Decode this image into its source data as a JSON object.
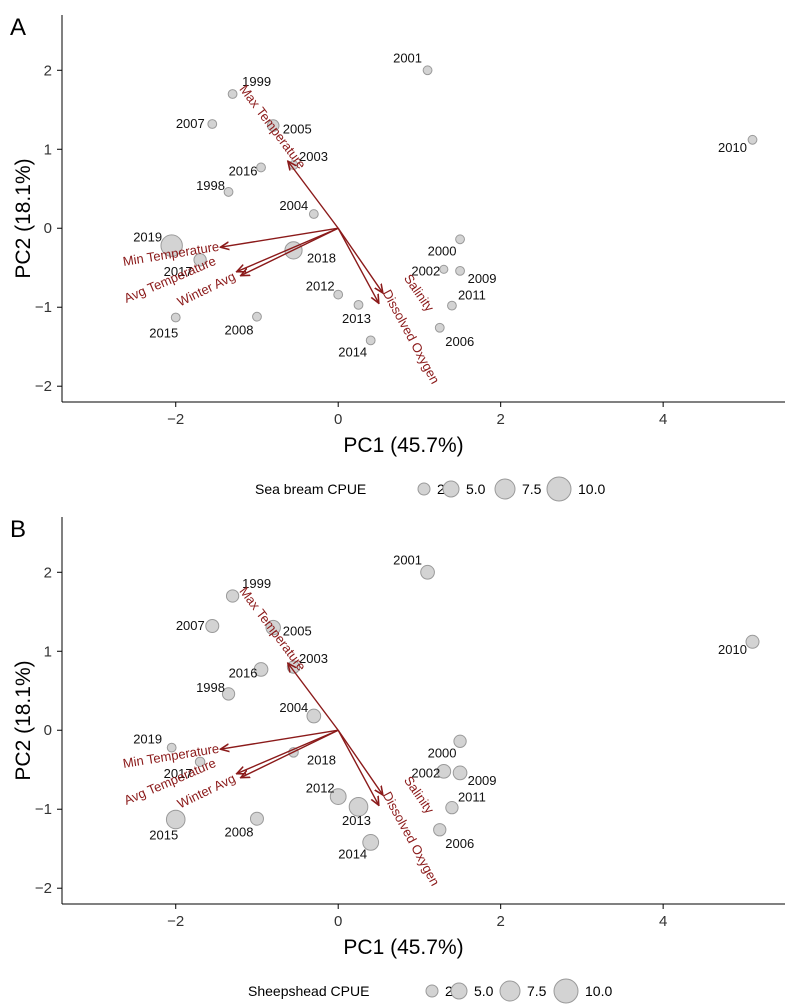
{
  "chart_data": [
    {
      "type": "scatter",
      "panel": "A",
      "xlabel": "PC1 (45.7%)",
      "ylabel": "PC2 (18.1%)",
      "xlim": [
        -3.4,
        5.5
      ],
      "ylim": [
        -2.2,
        2.7
      ],
      "xticks": [
        -2,
        0,
        2,
        4
      ],
      "yticks": [
        -2,
        -1,
        0,
        1,
        2
      ],
      "grid": false,
      "points": [
        {
          "label": "1998",
          "x": -1.35,
          "y": 0.46,
          "size": 2.0
        },
        {
          "label": "1999",
          "x": -1.3,
          "y": 1.7,
          "size": 2.0
        },
        {
          "label": "2000",
          "x": 1.5,
          "y": -0.14,
          "size": 2.0
        },
        {
          "label": "2001",
          "x": 1.1,
          "y": 2.0,
          "size": 2.0
        },
        {
          "label": "2002",
          "x": 1.3,
          "y": -0.52,
          "size": 1.5
        },
        {
          "label": "2003",
          "x": -0.55,
          "y": 0.8,
          "size": 2.0
        },
        {
          "label": "2004",
          "x": -0.3,
          "y": 0.18,
          "size": 2.0
        },
        {
          "label": "2005",
          "x": -0.8,
          "y": 1.3,
          "size": 4.0
        },
        {
          "label": "2006",
          "x": 1.25,
          "y": -1.26,
          "size": 2.0
        },
        {
          "label": "2007",
          "x": -1.55,
          "y": 1.32,
          "size": 2.0
        },
        {
          "label": "2008",
          "x": -1.0,
          "y": -1.12,
          "size": 2.0
        },
        {
          "label": "2009",
          "x": 1.5,
          "y": -0.54,
          "size": 2.0
        },
        {
          "label": "2010",
          "x": 5.1,
          "y": 1.12,
          "size": 2.0
        },
        {
          "label": "2011",
          "x": 1.4,
          "y": -0.98,
          "size": 2.0
        },
        {
          "label": "2012",
          "x": 0.0,
          "y": -0.84,
          "size": 2.0
        },
        {
          "label": "2013",
          "x": 0.25,
          "y": -0.97,
          "size": 2.0
        },
        {
          "label": "2014",
          "x": 0.4,
          "y": -1.42,
          "size": 2.0
        },
        {
          "label": "2015",
          "x": -2.0,
          "y": -1.13,
          "size": 2.0
        },
        {
          "label": "2016",
          "x": -0.95,
          "y": 0.77,
          "size": 2.0
        },
        {
          "label": "2017",
          "x": -1.7,
          "y": -0.4,
          "size": 4.5
        },
        {
          "label": "2018",
          "x": -0.55,
          "y": -0.28,
          "size": 8.0
        },
        {
          "label": "2019",
          "x": -2.05,
          "y": -0.22,
          "size": 11.0
        }
      ],
      "loadings": [
        {
          "label": "Max Temperature",
          "x": -0.62,
          "y": 0.85
        },
        {
          "label": "Min Temperature",
          "x": -1.45,
          "y": -0.24
        },
        {
          "label": "Avg Temperature",
          "x": -1.25,
          "y": -0.55
        },
        {
          "label": "Winter Avg",
          "x": -1.2,
          "y": -0.6
        },
        {
          "label": "Salinity",
          "x": 0.55,
          "y": -0.82
        },
        {
          "label": "Dissolved Oxygen",
          "x": 0.5,
          "y": -0.95
        }
      ],
      "legend": {
        "title": "Sea bream CPUE",
        "sizes": [
          "2.5",
          "5.0",
          "7.5",
          "10.0"
        ],
        "position": "bottom"
      }
    },
    {
      "type": "scatter",
      "panel": "B",
      "xlabel": "PC1 (45.7%)",
      "ylabel": "PC2 (18.1%)",
      "xlim": [
        -3.4,
        5.5
      ],
      "ylim": [
        -2.2,
        2.7
      ],
      "xticks": [
        -2,
        0,
        2,
        4
      ],
      "yticks": [
        -2,
        -1,
        0,
        1,
        2
      ],
      "grid": false,
      "points": [
        {
          "label": "1998",
          "x": -1.35,
          "y": 0.46,
          "size": 4.5
        },
        {
          "label": "1999",
          "x": -1.3,
          "y": 1.7,
          "size": 4.5
        },
        {
          "label": "2000",
          "x": 1.5,
          "y": -0.14,
          "size": 4.5
        },
        {
          "label": "2001",
          "x": 1.1,
          "y": 2.0,
          "size": 5.5
        },
        {
          "label": "2002",
          "x": 1.3,
          "y": -0.52,
          "size": 5.5
        },
        {
          "label": "2003",
          "x": -0.55,
          "y": 0.8,
          "size": 4.5
        },
        {
          "label": "2004",
          "x": -0.3,
          "y": 0.18,
          "size": 5.5
        },
        {
          "label": "2005",
          "x": -0.8,
          "y": 1.3,
          "size": 6.0
        },
        {
          "label": "2006",
          "x": 1.25,
          "y": -1.26,
          "size": 4.5
        },
        {
          "label": "2007",
          "x": -1.55,
          "y": 1.32,
          "size": 5.0
        },
        {
          "label": "2008",
          "x": -1.0,
          "y": -1.12,
          "size": 5.0
        },
        {
          "label": "2009",
          "x": 1.5,
          "y": -0.54,
          "size": 5.5
        },
        {
          "label": "2010",
          "x": 5.1,
          "y": 1.12,
          "size": 5.0
        },
        {
          "label": "2011",
          "x": 1.4,
          "y": -0.98,
          "size": 4.5
        },
        {
          "label": "2012",
          "x": 0.0,
          "y": -0.84,
          "size": 7.0
        },
        {
          "label": "2013",
          "x": 0.25,
          "y": -0.97,
          "size": 9.0
        },
        {
          "label": "2014",
          "x": 0.4,
          "y": -1.42,
          "size": 7.0
        },
        {
          "label": "2015",
          "x": -2.0,
          "y": -1.13,
          "size": 9.0
        },
        {
          "label": "2016",
          "x": -0.95,
          "y": 0.77,
          "size": 5.5
        },
        {
          "label": "2017",
          "x": -1.7,
          "y": -0.4,
          "size": 2.5
        },
        {
          "label": "2018",
          "x": -0.55,
          "y": -0.28,
          "size": 2.5
        },
        {
          "label": "2019",
          "x": -2.05,
          "y": -0.22,
          "size": 2.0
        }
      ],
      "loadings": [
        {
          "label": "Max Temperature",
          "x": -0.62,
          "y": 0.85
        },
        {
          "label": "Min Temperature",
          "x": -1.45,
          "y": -0.24
        },
        {
          "label": "Avg Temperature",
          "x": -1.25,
          "y": -0.55
        },
        {
          "label": "Winter Avg",
          "x": -1.2,
          "y": -0.6
        },
        {
          "label": "Salinity",
          "x": 0.55,
          "y": -0.82
        },
        {
          "label": "Dissolved Oxygen",
          "x": 0.5,
          "y": -0.95
        }
      ],
      "legend": {
        "title": "Sheepshead CPUE",
        "sizes": [
          "2.5",
          "5.0",
          "7.5",
          "10.0"
        ],
        "position": "bottom"
      }
    }
  ],
  "colors": {
    "point_fill": "#d3d3d3",
    "point_stroke": "#9a9a9a",
    "loading": "#8b1a1a"
  }
}
